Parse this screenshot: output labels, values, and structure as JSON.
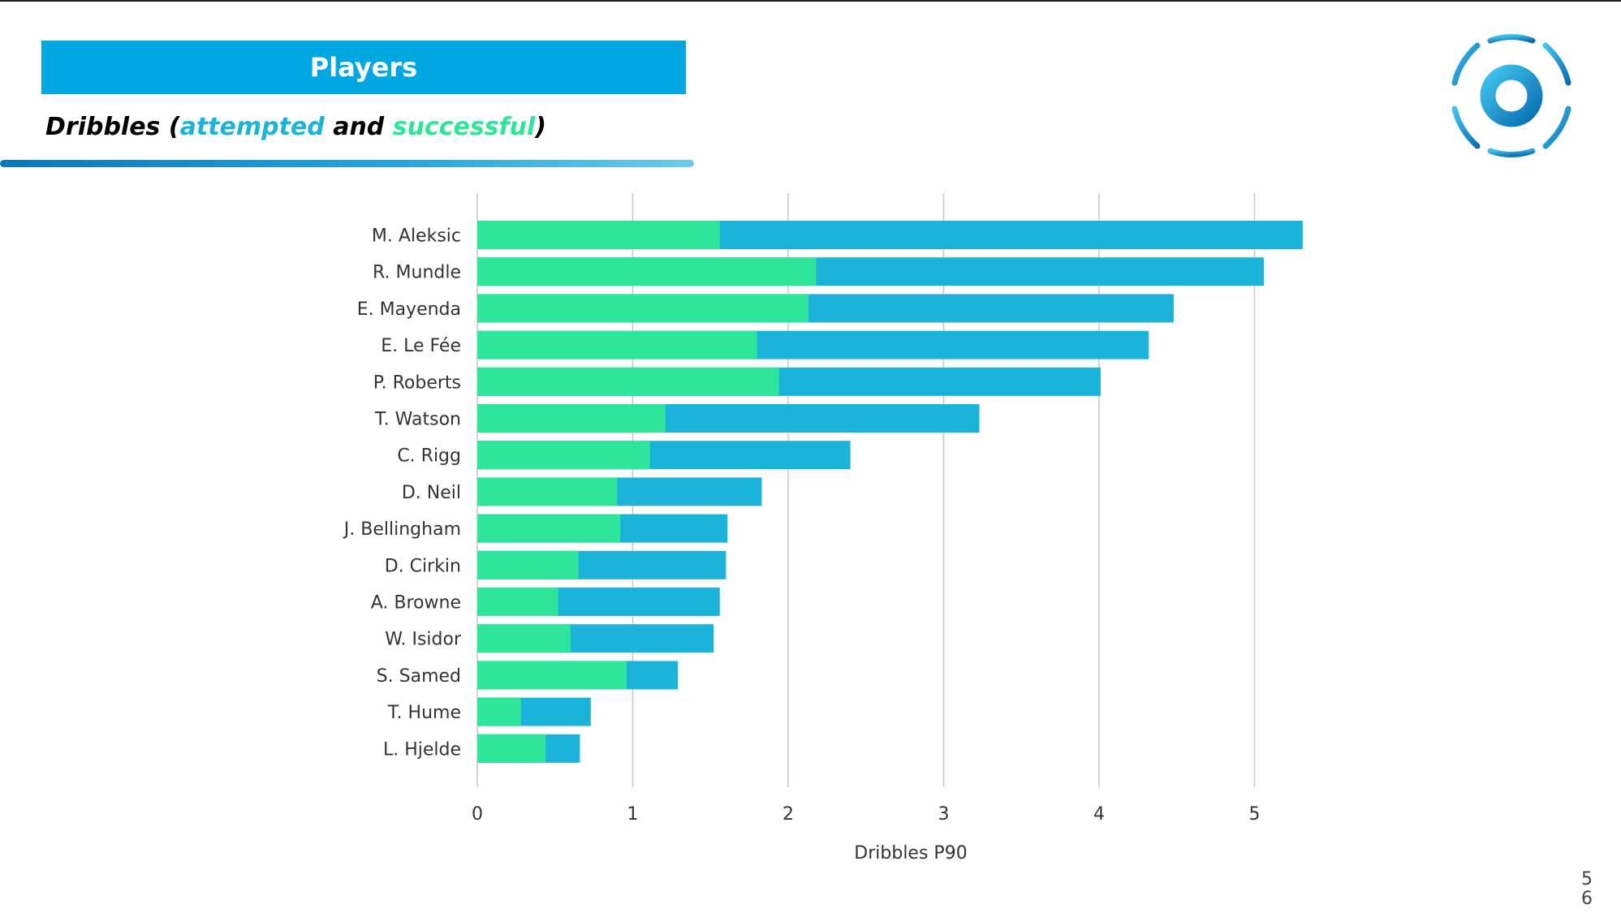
{
  "header": {
    "title": "Players",
    "subtitle": {
      "lead": "Dribbles (",
      "attempted": "attempted",
      "joiner": " and ",
      "successful": "successful",
      "tail": ")"
    }
  },
  "colors": {
    "banner": "#00A8E1",
    "attempted": "#1CB3DB",
    "successful": "#2EE69A",
    "grid": "#C8C8C8",
    "text": "#333333"
  },
  "logo": {
    "icon": "football-circle-logo"
  },
  "chart_data": {
    "type": "bar",
    "orientation": "horizontal",
    "stacked": false,
    "categories": [
      "M. Aleksic",
      "R. Mundle",
      "E. Mayenda",
      "E. Le Fée",
      "P. Roberts",
      "T. Watson",
      "C. Rigg",
      "D. Neil",
      "J. Bellingham",
      "D. Cirkin",
      "A. Browne",
      "W. Isidor",
      "S. Samed",
      "T. Hume",
      "L. Hjelde"
    ],
    "series": [
      {
        "name": "attempted",
        "color": "#1CB3DB",
        "values": [
          5.31,
          5.06,
          4.48,
          4.32,
          4.01,
          3.23,
          2.4,
          1.83,
          1.61,
          1.6,
          1.56,
          1.52,
          1.29,
          0.73,
          0.66
        ]
      },
      {
        "name": "successful",
        "color": "#2EE69A",
        "values": [
          1.56,
          2.18,
          2.13,
          1.8,
          1.94,
          1.21,
          1.11,
          0.9,
          0.92,
          0.65,
          0.52,
          0.6,
          0.96,
          0.28,
          0.44
        ]
      }
    ],
    "xlabel": "Dribbles P90",
    "ylabel": "",
    "xlim": [
      0,
      5.5
    ],
    "xticks": [
      0,
      1,
      2,
      3,
      4,
      5
    ],
    "grid": true,
    "legend": "none"
  },
  "page": {
    "number_line1": "5",
    "number_line2": "6"
  }
}
